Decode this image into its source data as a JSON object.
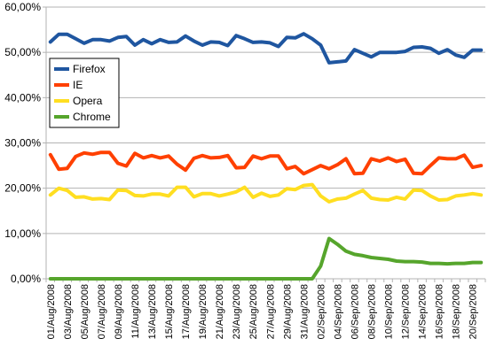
{
  "chart_data": {
    "type": "line",
    "title": "",
    "xlabel": "",
    "ylabel": "",
    "ylim": [
      0,
      60
    ],
    "grid": true,
    "legend_placement": "upper-left (inside plot)",
    "y_tick_labels": [
      "0,00%",
      "10,00%",
      "20,00%",
      "30,00%",
      "40,00%",
      "50,00%",
      "60,00%"
    ],
    "y_tick_values": [
      0,
      10,
      20,
      30,
      40,
      50,
      60
    ],
    "x": [
      "01/Aug/2008",
      "02/Aug/2008",
      "03/Aug/2008",
      "04/Aug/2008",
      "05/Aug/2008",
      "06/Aug/2008",
      "07/Aug/2008",
      "08/Aug/2008",
      "09/Aug/2008",
      "10/Aug/2008",
      "11/Aug/2008",
      "12/Aug/2008",
      "13/Aug/2008",
      "14/Aug/2008",
      "15/Aug/2008",
      "16/Aug/2008",
      "17/Aug/2008",
      "18/Aug/2008",
      "19/Aug/2008",
      "20/Aug/2008",
      "21/Aug/2008",
      "22/Aug/2008",
      "23/Aug/2008",
      "24/Aug/2008",
      "25/Aug/2008",
      "26/Aug/2008",
      "27/Aug/2008",
      "28/Aug/2008",
      "29/Aug/2008",
      "30/Aug/2008",
      "31/Aug/2008",
      "01/Sep/2008",
      "02/Sep/2008",
      "03/Sep/2008",
      "04/Sep/2008",
      "05/Sep/2008",
      "06/Sep/2008",
      "07/Sep/2008",
      "08/Sep/2008",
      "09/Sep/2008",
      "10/Sep/2008",
      "11/Sep/2008",
      "12/Sep/2008",
      "13/Sep/2008",
      "14/Sep/2008",
      "15/Sep/2008",
      "16/Sep/2008",
      "17/Sep/2008",
      "18/Sep/2008",
      "19/Sep/2008",
      "20/Sep/2008",
      "21/Sep/2008"
    ],
    "x_tick_labels": [
      "01/Aug/2008",
      "03/Aug/2008",
      "05/Aug/2008",
      "07/Aug/2008",
      "09/Aug/2008",
      "11/Aug/2008",
      "13/Aug/2008",
      "15/Aug/2008",
      "17/Aug/2008",
      "19/Aug/2008",
      "21/Aug/2008",
      "23/Aug/2008",
      "25/Aug/2008",
      "27/Aug/2008",
      "29/Aug/2008",
      "31/Aug/2008",
      "02/Sep/2008",
      "04/Sep/2008",
      "06/Sep/2008",
      "08/Sep/2008",
      "10/Sep/2008",
      "12/Sep/2008",
      "14/Sep/2008",
      "16/Sep/2008",
      "18/Sep/2008",
      "20/Sep/2008"
    ],
    "series": [
      {
        "name": "Firefox",
        "color": "#1f56a0",
        "values": [
          52.3,
          54.0,
          54.0,
          53.0,
          52.0,
          52.8,
          52.8,
          52.5,
          53.3,
          53.5,
          51.6,
          52.8,
          51.9,
          52.8,
          52.2,
          52.3,
          53.6,
          52.5,
          51.6,
          52.3,
          52.2,
          51.5,
          53.7,
          53.0,
          52.2,
          52.3,
          52.1,
          51.3,
          53.3,
          53.2,
          54.1,
          53.0,
          51.6,
          47.7,
          47.9,
          48.1,
          50.6,
          49.8,
          49.0,
          50.0,
          50.0,
          50.0,
          50.2,
          51.1,
          51.2,
          50.9,
          49.8,
          50.6,
          49.4,
          48.9,
          50.5,
          50.5
        ]
      },
      {
        "name": "IE",
        "color": "#ff4000",
        "values": [
          27.4,
          24.2,
          24.4,
          27.0,
          27.8,
          27.5,
          27.9,
          27.9,
          25.5,
          24.9,
          27.7,
          26.7,
          27.2,
          26.7,
          27.1,
          25.3,
          24.0,
          26.6,
          27.2,
          26.7,
          26.8,
          27.2,
          24.5,
          24.6,
          27.1,
          26.5,
          27.1,
          27.1,
          24.3,
          24.8,
          23.2,
          24.1,
          25.0,
          24.3,
          25.2,
          26.5,
          23.2,
          23.3,
          26.5,
          26.0,
          26.7,
          25.9,
          26.4,
          23.3,
          23.2,
          25.0,
          26.7,
          26.5,
          26.5,
          27.3,
          24.6,
          25.0
        ]
      },
      {
        "name": "Opera",
        "color": "#ffde21",
        "values": [
          18.5,
          20.0,
          19.5,
          18.0,
          18.1,
          17.6,
          17.7,
          17.5,
          19.6,
          19.5,
          18.4,
          18.3,
          18.7,
          18.7,
          18.3,
          20.2,
          20.2,
          18.1,
          18.8,
          18.8,
          18.3,
          18.7,
          19.2,
          20.2,
          18.0,
          18.9,
          18.2,
          18.5,
          19.9,
          19.7,
          20.6,
          20.8,
          18.3,
          17.0,
          17.6,
          17.8,
          18.7,
          19.5,
          17.8,
          17.5,
          17.4,
          18.0,
          17.6,
          19.6,
          19.5,
          18.3,
          17.4,
          17.5,
          18.3,
          18.5,
          18.8,
          18.5
        ]
      },
      {
        "name": "Chrome",
        "color": "#56a52c",
        "values": [
          0,
          0,
          0,
          0,
          0,
          0,
          0,
          0,
          0,
          0,
          0,
          0,
          0,
          0,
          0,
          0,
          0,
          0,
          0,
          0,
          0,
          0,
          0,
          0,
          0,
          0,
          0,
          0,
          0,
          0,
          0,
          0,
          2.8,
          8.9,
          7.6,
          6.1,
          5.4,
          5.1,
          4.7,
          4.5,
          4.3,
          3.9,
          3.8,
          3.8,
          3.7,
          3.4,
          3.4,
          3.3,
          3.4,
          3.4,
          3.6,
          3.6
        ]
      }
    ]
  }
}
